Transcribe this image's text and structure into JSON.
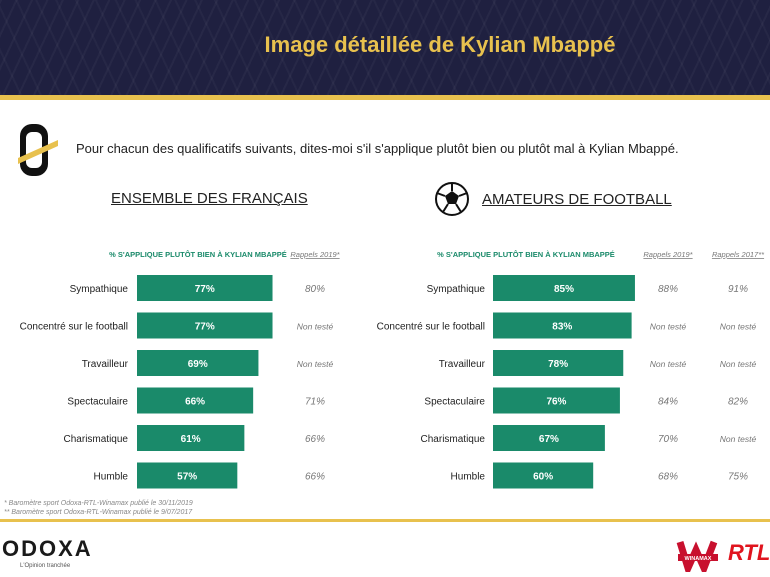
{
  "header": {
    "title": "Image détaillée de Kylian Mbappé"
  },
  "question": "Pour chacun des qualificatifs suivants, dites-moi s'il s'applique plutôt bien ou plutôt mal à Kylian Mbappé.",
  "panels": {
    "left": {
      "title": "ENSEMBLE DES FRANÇAIS"
    },
    "right": {
      "title": "AMATEURS DE FOOTBALL"
    }
  },
  "colors": {
    "bar": "#1a8a6a",
    "header_bg": "#1f2040",
    "accent": "#e8c14e"
  },
  "chart_data": [
    {
      "type": "bar",
      "title": "ENSEMBLE DES FRANÇAIS",
      "series_header": "% S'APPLIQUE PLUTÔT BIEN À KYLIAN MBAPPÉ",
      "categories": [
        "Sympathique",
        "Concentré sur le football",
        "Travailleur",
        "Spectaculaire",
        "Charismatique",
        "Humble"
      ],
      "values": [
        77,
        77,
        69,
        66,
        61,
        57
      ],
      "value_labels": [
        "77%",
        "77%",
        "69%",
        "66%",
        "61%",
        "57%"
      ],
      "recall_columns": [
        {
          "header": "Rappels 2019*",
          "values": [
            "80%",
            "Non testé",
            "Non testé",
            "71%",
            "66%",
            "66%"
          ]
        }
      ],
      "xlim": [
        0,
        100
      ]
    },
    {
      "type": "bar",
      "title": "AMATEURS DE FOOTBALL",
      "series_header": "% S'APPLIQUE PLUTÔT BIEN À KYLIAN MBAPPÉ",
      "categories": [
        "Sympathique",
        "Concentré sur le football",
        "Travailleur",
        "Spectaculaire",
        "Charismatique",
        "Humble"
      ],
      "values": [
        85,
        83,
        78,
        76,
        67,
        60
      ],
      "value_labels": [
        "85%",
        "83%",
        "78%",
        "76%",
        "67%",
        "60%"
      ],
      "recall_columns": [
        {
          "header": "Rappels 2019*",
          "values": [
            "88%",
            "Non testé",
            "Non testé",
            "84%",
            "70%",
            "68%"
          ]
        },
        {
          "header": "Rappels 2017**",
          "values": [
            "91%",
            "Non testé",
            "Non testé",
            "82%",
            "Non testé",
            "75%"
          ]
        }
      ],
      "xlim": [
        0,
        100
      ]
    }
  ],
  "footnotes": [
    "* Baromètre sport Odoxa-RTL-Winamax publié le 30/11/2019",
    "** Baromètre sport Odoxa-RTL-Winamax publié le 9/07/2017"
  ],
  "footer": {
    "brand": "ODOXA",
    "tagline": "L'Opinion tranchée",
    "partner1": "WINAMAX",
    "partner2": "RTL"
  }
}
